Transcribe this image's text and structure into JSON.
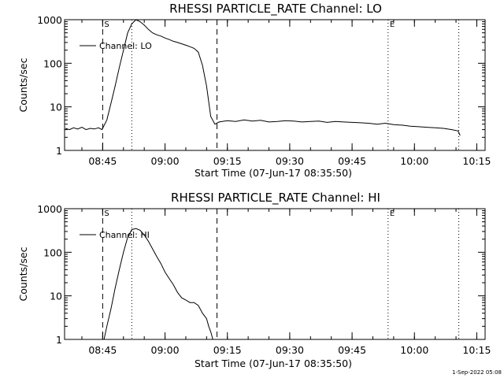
{
  "footer": {
    "timestamp": "1-Sep-2022 05:08"
  },
  "chart_data": [
    {
      "type": "line",
      "title": "RHESSI PARTICLE_RATE Channel: LO",
      "xlabel": "Start Time (07-Jun-17 08:35:50)",
      "ylabel": "Counts/sec",
      "yscale": "log",
      "ylim": [
        1,
        1000
      ],
      "xlim": [
        "08:35:50",
        "10:17:00"
      ],
      "xticks": [
        "08:45",
        "09:00",
        "09:15",
        "09:30",
        "09:45",
        "10:00",
        "10:15"
      ],
      "yticks": [
        "1",
        "10",
        "100",
        "1000"
      ],
      "legend": {
        "placement": "top-left",
        "entries": [
          "Channel: LO"
        ]
      },
      "grid": false,
      "markers": [
        {
          "label": "S",
          "time": "08:45:00",
          "style": "dashed"
        },
        {
          "label": "",
          "time": "08:52:00",
          "style": "dotted"
        },
        {
          "label": "",
          "time": "09:12:30",
          "style": "dashed"
        },
        {
          "label": "E",
          "time": "09:53:40",
          "style": "dotted"
        },
        {
          "label": "",
          "time": "10:10:40",
          "style": "dotted"
        }
      ],
      "series": [
        {
          "name": "Channel: LO",
          "x": [
            "08:36:00",
            "08:37:00",
            "08:38:00",
            "08:39:00",
            "08:40:00",
            "08:41:00",
            "08:42:00",
            "08:43:00",
            "08:44:00",
            "08:44:50",
            "08:46:00",
            "08:47:00",
            "08:48:00",
            "08:49:00",
            "08:50:00",
            "08:51:00",
            "08:52:00",
            "08:53:00",
            "08:54:00",
            "08:55:00",
            "08:56:00",
            "08:57:00",
            "08:58:00",
            "08:59:00",
            "09:00:00",
            "09:01:00",
            "09:02:00",
            "09:03:00",
            "09:04:00",
            "09:05:00",
            "09:06:00",
            "09:07:00",
            "09:08:00",
            "09:09:00",
            "09:10:00",
            "09:11:00",
            "09:12:00",
            "09:13:00",
            "09:15:00",
            "09:17:00",
            "09:19:00",
            "09:21:00",
            "09:23:00",
            "09:25:00",
            "09:27:00",
            "09:29:00",
            "09:31:00",
            "09:33:00",
            "09:35:00",
            "09:37:00",
            "09:39:00",
            "09:41:00",
            "09:43:00",
            "09:45:00",
            "09:47:00",
            "09:49:00",
            "09:51:00",
            "09:53:00",
            "09:55:00",
            "09:57:00",
            "09:59:00",
            "10:01:00",
            "10:03:00",
            "10:05:00",
            "10:07:00",
            "10:09:00",
            "10:10:30",
            "10:11:00"
          ],
          "y": [
            3.2,
            3.0,
            3.3,
            3.1,
            3.4,
            3.0,
            3.2,
            3.1,
            3.3,
            3.0,
            5,
            12,
            30,
            80,
            200,
            500,
            800,
            1000,
            900,
            750,
            600,
            500,
            450,
            420,
            380,
            350,
            320,
            300,
            280,
            260,
            240,
            220,
            180,
            90,
            30,
            6,
            4,
            4.5,
            4.8,
            4.6,
            5.0,
            4.7,
            4.9,
            4.5,
            4.6,
            4.8,
            4.7,
            4.5,
            4.6,
            4.7,
            4.4,
            4.6,
            4.5,
            4.4,
            4.3,
            4.2,
            4.0,
            4.2,
            3.9,
            3.8,
            3.6,
            3.5,
            3.4,
            3.3,
            3.2,
            3.0,
            2.8,
            2.2
          ]
        }
      ]
    },
    {
      "type": "line",
      "title": "RHESSI PARTICLE_RATE Channel: HI",
      "xlabel": "Start Time (07-Jun-17 08:35:50)",
      "ylabel": "Counts/sec",
      "yscale": "log",
      "ylim": [
        1,
        1000
      ],
      "xlim": [
        "08:35:50",
        "10:17:00"
      ],
      "xticks": [
        "08:45",
        "09:00",
        "09:15",
        "09:30",
        "09:45",
        "10:00",
        "10:15"
      ],
      "yticks": [
        "1",
        "10",
        "100",
        "1000"
      ],
      "legend": {
        "placement": "top-left",
        "entries": [
          "Channel: HI"
        ]
      },
      "grid": false,
      "markers": [
        {
          "label": "S",
          "time": "08:45:00",
          "style": "dashed"
        },
        {
          "label": "",
          "time": "08:52:00",
          "style": "dotted"
        },
        {
          "label": "",
          "time": "09:12:30",
          "style": "dashed"
        },
        {
          "label": "E",
          "time": "09:53:40",
          "style": "dotted"
        },
        {
          "label": "",
          "time": "10:10:40",
          "style": "dotted"
        }
      ],
      "series": [
        {
          "name": "Channel: HI",
          "x": [
            "08:45:20",
            "08:46:00",
            "08:47:00",
            "08:48:00",
            "08:49:00",
            "08:50:00",
            "08:51:00",
            "08:52:00",
            "08:53:00",
            "08:54:00",
            "08:55:00",
            "08:56:00",
            "08:57:00",
            "08:58:00",
            "08:59:00",
            "09:00:00",
            "09:01:00",
            "09:02:00",
            "09:03:00",
            "09:04:00",
            "09:05:00",
            "09:06:00",
            "09:07:00",
            "09:08:00",
            "09:09:00",
            "09:10:00",
            "09:10:30",
            "09:11:00",
            "09:11:30"
          ],
          "y": [
            1,
            2,
            5,
            15,
            40,
            100,
            220,
            330,
            350,
            320,
            250,
            180,
            120,
            80,
            55,
            35,
            25,
            18,
            12,
            9,
            8,
            7,
            7,
            6,
            4,
            3,
            2,
            1.5,
            1
          ]
        }
      ]
    }
  ]
}
